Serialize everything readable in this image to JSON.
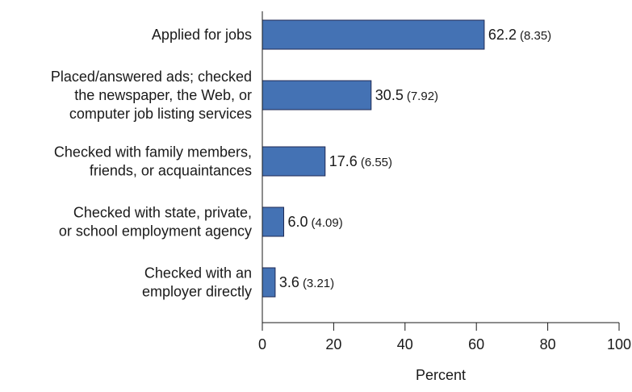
{
  "chart_data": {
    "type": "bar",
    "orientation": "horizontal",
    "categories": [
      [
        "Applied for jobs"
      ],
      [
        "Placed/answered ads; checked",
        "the newspaper, the Web, or",
        "computer job listing services"
      ],
      [
        "Checked with family members,",
        "friends, or acquaintances"
      ],
      [
        "Checked with state, private,",
        "or school employment agency"
      ],
      [
        "Checked with an",
        "employer directly"
      ]
    ],
    "values": [
      62.2,
      30.5,
      17.6,
      6.0,
      3.6
    ],
    "value_labels": [
      "62.2",
      "30.5",
      "17.6",
      "6.0",
      "3.6"
    ],
    "standard_errors": [
      "(8.35)",
      "(7.92)",
      "(6.55)",
      "(4.09)",
      "(3.21)"
    ],
    "xlabel": "Percent",
    "xlim": [
      0,
      100
    ],
    "xticks": [
      "0",
      "20",
      "40",
      "60",
      "80",
      "100"
    ],
    "grid": false,
    "bar_color": "#4472b4",
    "bar_edge_color": "#1f2a55"
  }
}
